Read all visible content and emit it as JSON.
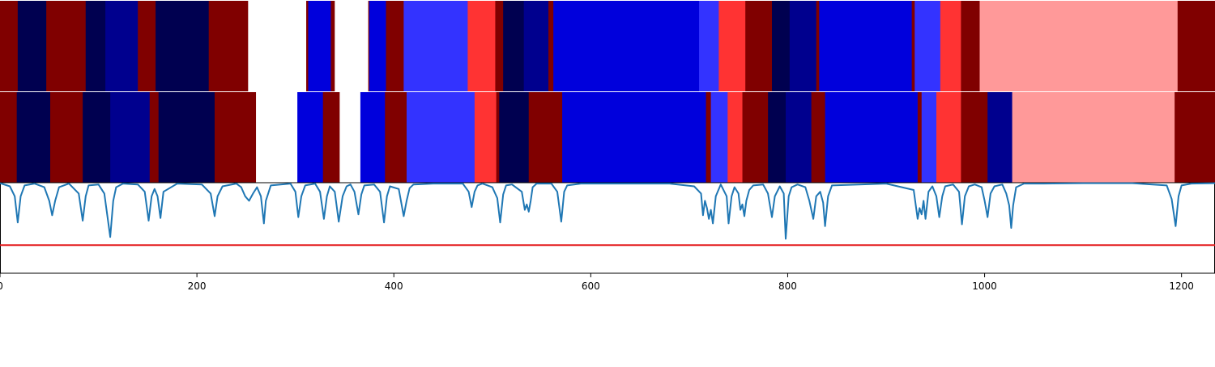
{
  "chart_data": {
    "type": "heatmap",
    "title": "",
    "xlabel": "",
    "ylabel": "",
    "xlim": [
      0,
      1234
    ],
    "x_ticks": [
      0,
      200,
      400,
      600,
      800,
      1000,
      1200
    ],
    "x_tick_labels": [
      "0",
      "200",
      "400",
      "600",
      "800",
      "1000",
      "1200"
    ],
    "palette": {
      "navy": "#000050",
      "darkblue": "#00008e",
      "blue": "#0000dc",
      "lightblue": "#3333ff",
      "white": "#ffffff",
      "pink": "#ff9999",
      "red": "#ff3333",
      "darkred": "#800000"
    },
    "heatmap_rows": [
      {
        "segments": [
          [
            0,
            18,
            "darkred"
          ],
          [
            18,
            47,
            "navy"
          ],
          [
            47,
            87,
            "darkred"
          ],
          [
            87,
            107,
            "navy"
          ],
          [
            107,
            140,
            "darkblue"
          ],
          [
            140,
            158,
            "darkred"
          ],
          [
            158,
            212,
            "navy"
          ],
          [
            212,
            252,
            "darkred"
          ],
          [
            252,
            311,
            "white"
          ],
          [
            311,
            313,
            "darkred"
          ],
          [
            313,
            336,
            "blue"
          ],
          [
            336,
            340,
            "darkred"
          ],
          [
            340,
            374,
            "white"
          ],
          [
            374,
            375,
            "darkred"
          ],
          [
            375,
            392,
            "blue"
          ],
          [
            392,
            410,
            "darkred"
          ],
          [
            410,
            475,
            "lightblue"
          ],
          [
            475,
            503,
            "red"
          ],
          [
            503,
            511,
            "darkred"
          ],
          [
            511,
            532,
            "navy"
          ],
          [
            532,
            557,
            "darkblue"
          ],
          [
            557,
            562,
            "darkred"
          ],
          [
            562,
            710,
            "blue"
          ],
          [
            710,
            730,
            "lightblue"
          ],
          [
            730,
            757,
            "red"
          ],
          [
            757,
            784,
            "darkred"
          ],
          [
            784,
            802,
            "navy"
          ],
          [
            802,
            829,
            "darkblue"
          ],
          [
            829,
            832,
            "darkred"
          ],
          [
            832,
            926,
            "blue"
          ],
          [
            926,
            929,
            "darkred"
          ],
          [
            929,
            955,
            "lightblue"
          ],
          [
            955,
            976,
            "red"
          ],
          [
            976,
            995,
            "darkred"
          ],
          [
            995,
            1196,
            "pink"
          ],
          [
            1196,
            1234,
            "darkred"
          ]
        ]
      },
      {
        "segments": [
          [
            0,
            17,
            "darkred"
          ],
          [
            17,
            51,
            "navy"
          ],
          [
            51,
            84,
            "darkred"
          ],
          [
            84,
            112,
            "navy"
          ],
          [
            112,
            152,
            "darkblue"
          ],
          [
            152,
            161,
            "darkred"
          ],
          [
            161,
            218,
            "navy"
          ],
          [
            218,
            260,
            "darkred"
          ],
          [
            260,
            302,
            "white"
          ],
          [
            302,
            328,
            "blue"
          ],
          [
            328,
            345,
            "darkred"
          ],
          [
            345,
            366,
            "white"
          ],
          [
            366,
            391,
            "blue"
          ],
          [
            391,
            413,
            "darkred"
          ],
          [
            413,
            482,
            "lightblue"
          ],
          [
            482,
            504,
            "red"
          ],
          [
            504,
            507,
            "darkred"
          ],
          [
            507,
            537,
            "navy"
          ],
          [
            537,
            571,
            "darkred"
          ],
          [
            571,
            717,
            "blue"
          ],
          [
            717,
            722,
            "darkred"
          ],
          [
            722,
            739,
            "lightblue"
          ],
          [
            739,
            754,
            "red"
          ],
          [
            754,
            780,
            "darkred"
          ],
          [
            780,
            798,
            "navy"
          ],
          [
            798,
            824,
            "darkblue"
          ],
          [
            824,
            838,
            "darkred"
          ],
          [
            838,
            932,
            "blue"
          ],
          [
            932,
            936,
            "darkred"
          ],
          [
            936,
            951,
            "lightblue"
          ],
          [
            951,
            976,
            "red"
          ],
          [
            976,
            1003,
            "darkred"
          ],
          [
            1003,
            1028,
            "darkblue"
          ],
          [
            1028,
            1193,
            "pink"
          ],
          [
            1193,
            1234,
            "darkred"
          ]
        ]
      }
    ],
    "line_series": {
      "color": "#1f77b4",
      "ylim": [
        0,
        1
      ],
      "x": [
        0,
        10,
        15,
        18,
        21,
        25,
        35,
        45,
        50,
        53,
        56,
        60,
        70,
        80,
        84,
        87,
        90,
        100,
        106,
        112,
        115,
        118,
        125,
        140,
        147,
        151,
        154,
        157,
        160,
        163,
        166,
        180,
        205,
        214,
        218,
        221,
        226,
        240,
        245,
        249,
        253,
        257,
        261,
        265,
        268,
        270,
        275,
        295,
        300,
        303,
        306,
        310,
        320,
        325,
        329,
        332,
        335,
        340,
        344,
        348,
        352,
        356,
        360,
        364,
        367,
        370,
        380,
        386,
        390,
        393,
        396,
        405,
        410,
        413,
        416,
        420,
        440,
        470,
        476,
        479,
        482,
        485,
        490,
        500,
        505,
        508,
        511,
        514,
        520,
        530,
        533,
        535,
        537,
        539,
        541,
        545,
        560,
        566,
        570,
        573,
        576,
        590,
        680,
        705,
        712,
        714,
        716,
        718,
        720,
        722,
        724,
        727,
        732,
        738,
        740,
        743,
        746,
        750,
        752,
        754,
        756,
        758,
        761,
        765,
        775,
        780,
        784,
        787,
        792,
        796,
        798,
        801,
        804,
        810,
        818,
        822,
        826,
        829,
        833,
        836,
        838,
        841,
        845,
        900,
        928,
        932,
        934,
        936,
        938,
        940,
        943,
        947,
        951,
        954,
        957,
        960,
        968,
        974,
        977,
        980,
        984,
        990,
        997,
        1000,
        1003,
        1006,
        1010,
        1018,
        1022,
        1025,
        1027,
        1029,
        1032,
        1040,
        1060,
        1100,
        1150,
        1185,
        1190,
        1194,
        1197,
        1200,
        1210,
        1234
      ],
      "y": [
        0.995,
        0.96,
        0.85,
        0.56,
        0.85,
        0.97,
        0.99,
        0.95,
        0.8,
        0.64,
        0.8,
        0.95,
        0.99,
        0.88,
        0.58,
        0.85,
        0.97,
        0.98,
        0.88,
        0.4,
        0.8,
        0.95,
        0.99,
        0.98,
        0.9,
        0.58,
        0.85,
        0.93,
        0.85,
        0.61,
        0.9,
        0.99,
        0.98,
        0.88,
        0.63,
        0.85,
        0.96,
        0.99,
        0.95,
        0.85,
        0.8,
        0.88,
        0.95,
        0.85,
        0.55,
        0.8,
        0.97,
        0.99,
        0.9,
        0.62,
        0.85,
        0.97,
        0.99,
        0.9,
        0.6,
        0.85,
        0.96,
        0.9,
        0.57,
        0.85,
        0.96,
        0.98,
        0.9,
        0.65,
        0.87,
        0.97,
        0.98,
        0.9,
        0.56,
        0.85,
        0.96,
        0.93,
        0.63,
        0.8,
        0.94,
        0.98,
        0.99,
        0.99,
        0.9,
        0.73,
        0.9,
        0.97,
        0.99,
        0.95,
        0.83,
        0.56,
        0.87,
        0.97,
        0.98,
        0.9,
        0.7,
        0.76,
        0.68,
        0.8,
        0.95,
        0.99,
        0.99,
        0.9,
        0.57,
        0.9,
        0.97,
        0.99,
        0.99,
        0.96,
        0.88,
        0.64,
        0.8,
        0.72,
        0.6,
        0.7,
        0.55,
        0.85,
        0.98,
        0.85,
        0.55,
        0.85,
        0.95,
        0.88,
        0.7,
        0.76,
        0.63,
        0.8,
        0.92,
        0.97,
        0.98,
        0.88,
        0.62,
        0.85,
        0.96,
        0.88,
        0.38,
        0.85,
        0.95,
        0.98,
        0.95,
        0.8,
        0.6,
        0.85,
        0.9,
        0.78,
        0.52,
        0.85,
        0.97,
        0.99,
        0.92,
        0.6,
        0.72,
        0.65,
        0.8,
        0.6,
        0.9,
        0.96,
        0.85,
        0.62,
        0.85,
        0.96,
        0.98,
        0.9,
        0.54,
        0.85,
        0.96,
        0.98,
        0.95,
        0.8,
        0.62,
        0.88,
        0.96,
        0.98,
        0.88,
        0.75,
        0.5,
        0.75,
        0.95,
        0.99,
        0.99,
        0.995,
        0.995,
        0.97,
        0.82,
        0.52,
        0.85,
        0.97,
        0.99,
        0.995
      ]
    },
    "threshold_line": {
      "y": 0.31,
      "color": "#e41a1c"
    }
  }
}
